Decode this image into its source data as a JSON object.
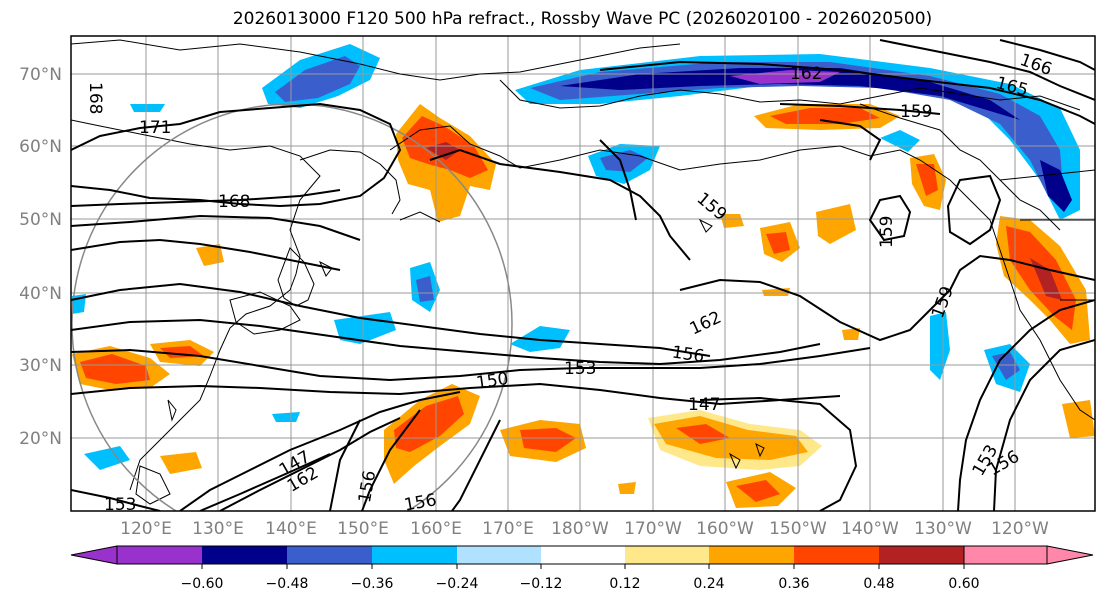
{
  "title": "2026013000 F120 500 hPa refract., Rossby Wave PC (2026020100 - 2026020500)",
  "lat_labels": [
    "70°N",
    "60°N",
    "50°N",
    "40°N",
    "30°N",
    "20°N"
  ],
  "lon_labels": [
    "120°E",
    "130°E",
    "140°E",
    "150°E",
    "160°E",
    "170°E",
    "180°W",
    "170°W",
    "160°W",
    "150°W",
    "140°W",
    "130°W",
    "120°W"
  ],
  "contour_labels": [
    "168",
    "171",
    "168",
    "162",
    "165",
    "166",
    "159",
    "159",
    "159",
    "159",
    "162",
    "156",
    "153",
    "150",
    "147",
    "147",
    "162",
    "156",
    "156",
    "153",
    "156",
    "153"
  ],
  "colorbar": {
    "labels": [
      "−0.60",
      "−0.48",
      "−0.36",
      "−0.24",
      "−0.12",
      "0.12",
      "0.24",
      "0.36",
      "0.48",
      "0.60"
    ],
    "colors": [
      "#9932cc",
      "#00008b",
      "#3a5fcd",
      "#00bfff",
      "#b0e2ff",
      "#ffffff",
      "#ffe88a",
      "#ffa500",
      "#ff4500",
      "#b22222",
      "#ff88aa"
    ]
  }
}
